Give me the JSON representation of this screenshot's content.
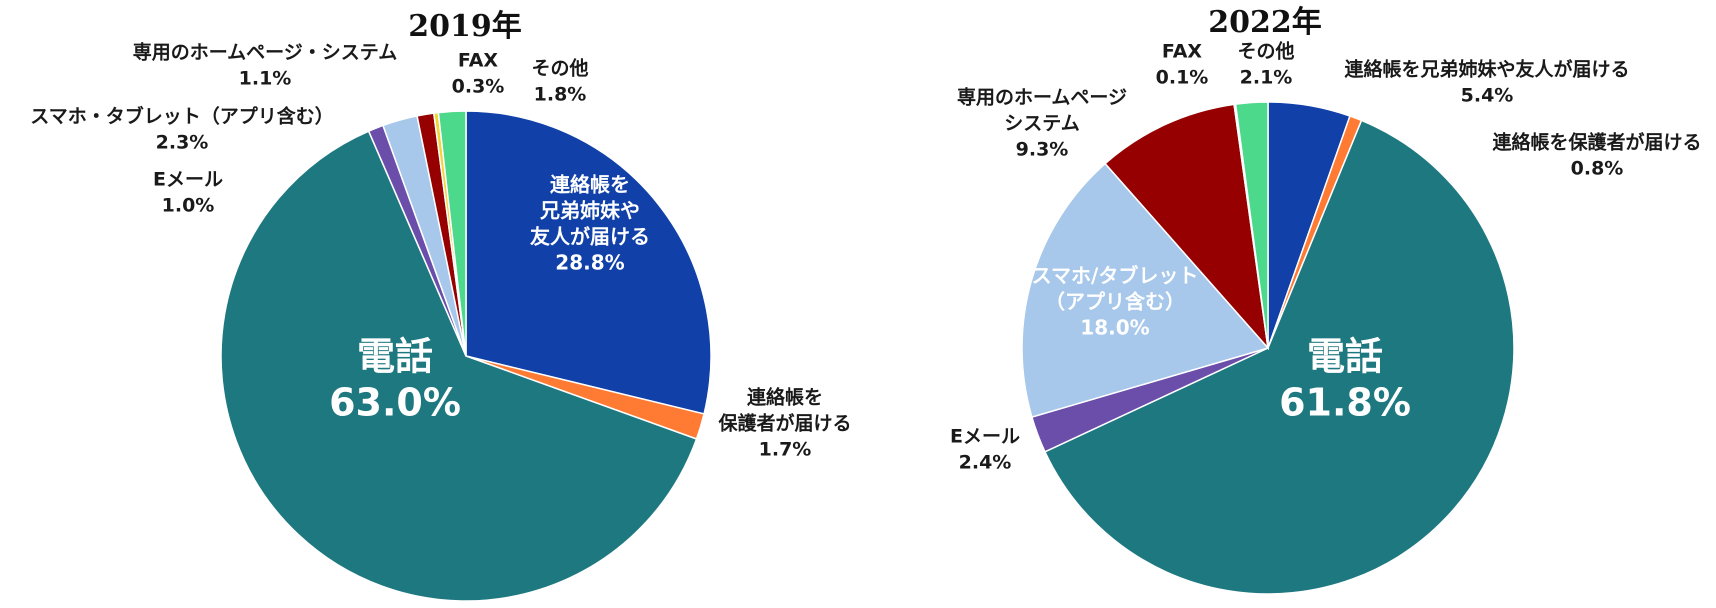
{
  "chart_data": [
    {
      "type": "pie",
      "title": "2019年",
      "slices": [
        {
          "label_lines": [
            "連絡帳を",
            "兄弟姉妹や",
            "友人が届ける"
          ],
          "value_text": "28.8%",
          "value": 28.8,
          "color": "#1040A8"
        },
        {
          "label_lines": [
            "連絡帳を",
            "保護者が届ける"
          ],
          "value_text": "1.7%",
          "value": 1.7,
          "color": "#FF7A33"
        },
        {
          "label_lines": [
            "電話"
          ],
          "value_text": "63.0%",
          "value": 63.0,
          "color": "#1E7880"
        },
        {
          "label_lines": [
            "Eメール"
          ],
          "value_text": "1.0%",
          "value": 1.0,
          "color": "#6A4EAA"
        },
        {
          "label_lines": [
            "スマホ・タブレット（アプリ含む）"
          ],
          "value_text": "2.3%",
          "value": 2.3,
          "color": "#A7C8EA"
        },
        {
          "label_lines": [
            "専用のホームページ・システム"
          ],
          "value_text": "1.1%",
          "value": 1.1,
          "color": "#960000"
        },
        {
          "label_lines": [
            "FAX"
          ],
          "value_text": "0.3%",
          "value": 0.3,
          "color": "#F2D33A"
        },
        {
          "label_lines": [
            "その他"
          ],
          "value_text": "1.8%",
          "value": 1.8,
          "color": "#4CD98C"
        }
      ]
    },
    {
      "type": "pie",
      "title": "2022年",
      "slices": [
        {
          "label_lines": [
            "連絡帳を兄弟姉妹や友人が届ける"
          ],
          "value_text": "5.4%",
          "value": 5.4,
          "color": "#1040A8"
        },
        {
          "label_lines": [
            "連絡帳を保護者が届ける"
          ],
          "value_text": "0.8%",
          "value": 0.8,
          "color": "#FF7A33"
        },
        {
          "label_lines": [
            "電話"
          ],
          "value_text": "61.8%",
          "value": 61.8,
          "color": "#1E7880"
        },
        {
          "label_lines": [
            "Eメール"
          ],
          "value_text": "2.4%",
          "value": 2.4,
          "color": "#6A4EAA"
        },
        {
          "label_lines": [
            "スマホ/タブレット",
            "（アプリ含む）"
          ],
          "value_text": "18.0%",
          "value": 18.0,
          "color": "#A7C8EA"
        },
        {
          "label_lines": [
            "専用のホームページ",
            "システム"
          ],
          "value_text": "9.3%",
          "value": 9.3,
          "color": "#960000"
        },
        {
          "label_lines": [
            "FAX"
          ],
          "value_text": "0.1%",
          "value": 0.1,
          "color": "#F2D33A"
        },
        {
          "label_lines": [
            "その他"
          ],
          "value_text": "2.1%",
          "value": 2.1,
          "color": "#4CD98C"
        }
      ]
    }
  ]
}
